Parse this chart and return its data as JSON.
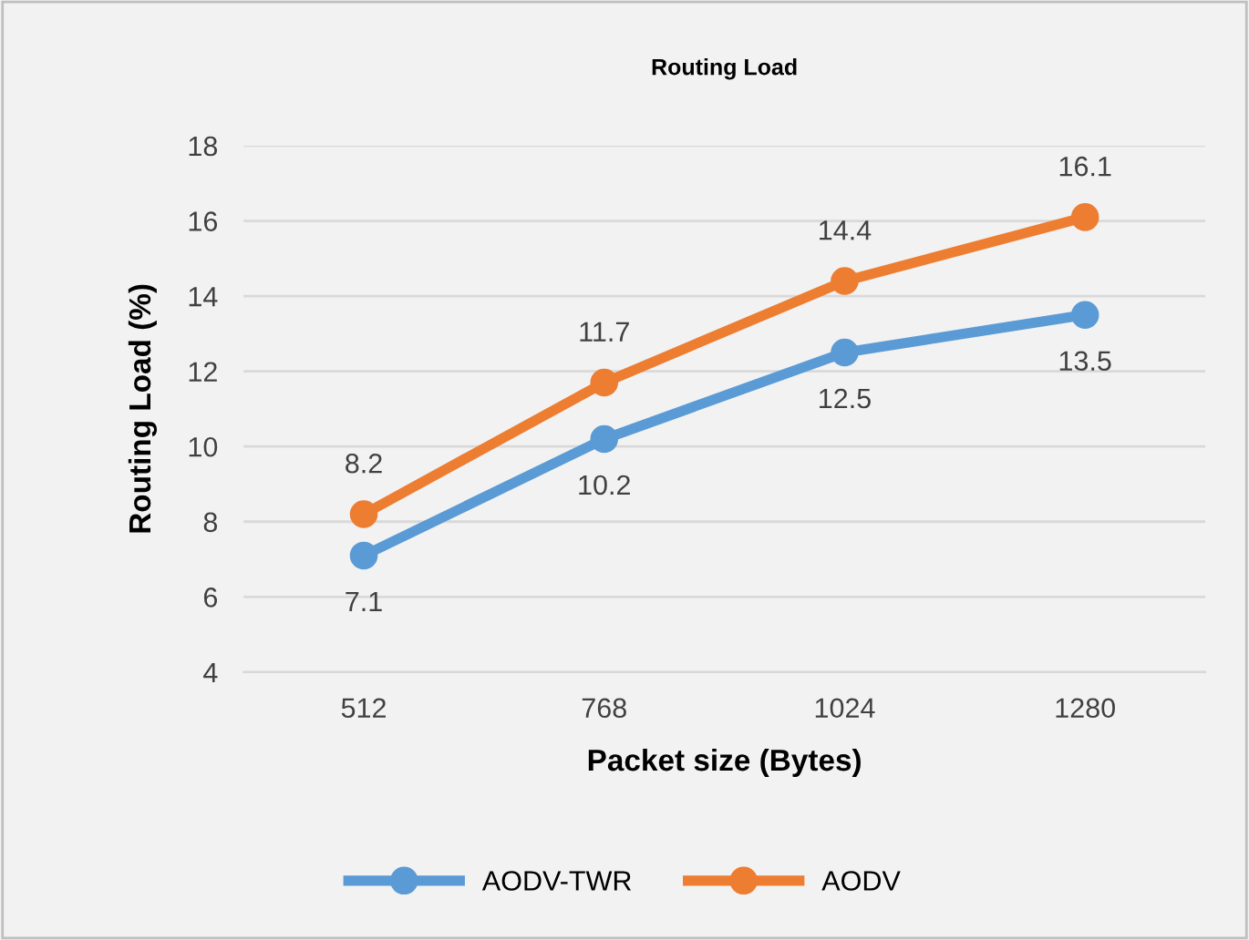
{
  "chart_data": {
    "type": "line",
    "title": "Routing Load",
    "xlabel": "Packet size (Bytes)",
    "ylabel": "Routing Load (%)",
    "categories": [
      "512",
      "768",
      "1024",
      "1280"
    ],
    "series": [
      {
        "name": "AODV-TWR",
        "color": "#5b9bd5",
        "values": [
          7.1,
          10.2,
          12.5,
          13.5
        ]
      },
      {
        "name": "AODV",
        "color": "#ed7d31",
        "values": [
          8.2,
          11.7,
          14.4,
          16.1
        ]
      }
    ],
    "ylim": [
      4,
      18
    ],
    "yticks": [
      4,
      6,
      8,
      10,
      12,
      14,
      16,
      18
    ],
    "grid": "y",
    "legend": "bottom",
    "marker": "circle",
    "line_style": "solid",
    "data_labels": true
  }
}
